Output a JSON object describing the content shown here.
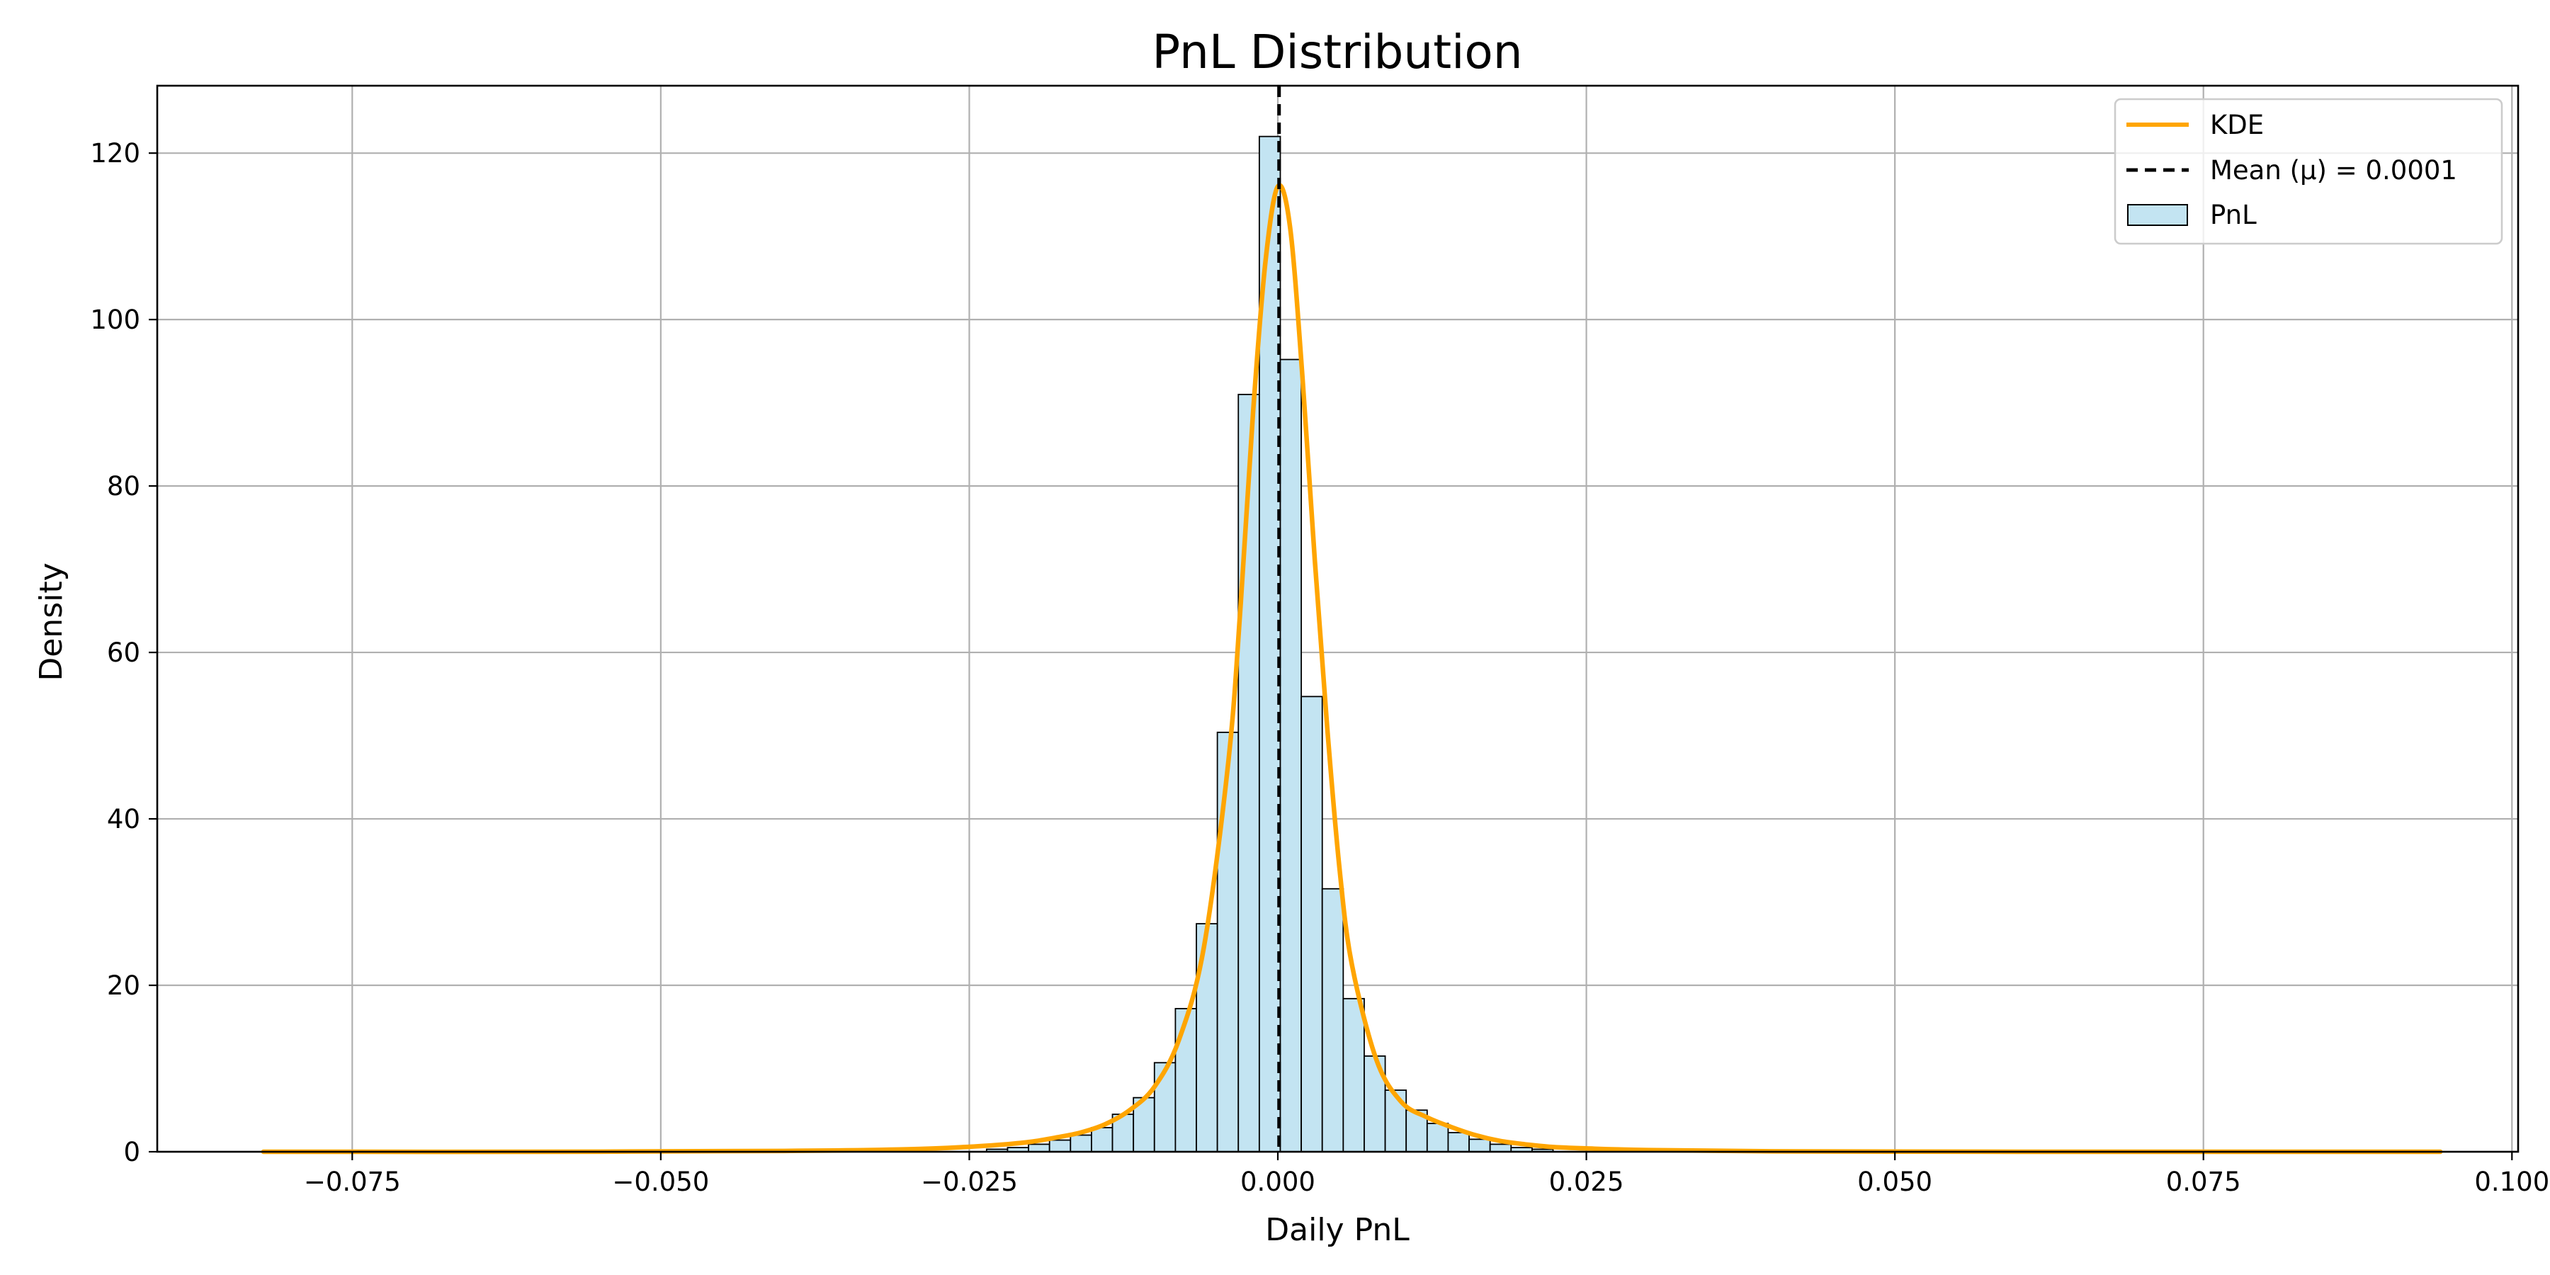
{
  "chart_data": {
    "type": "bar",
    "title": "PnL Distribution",
    "xlabel": "Daily PnL",
    "ylabel": "Density",
    "xlim": [
      -0.0908,
      0.1005
    ],
    "ylim": [
      0,
      128.1
    ],
    "grid": true,
    "legend_position": "top-right",
    "x_ticks": [
      {
        "value": -0.075,
        "label": "−0.075"
      },
      {
        "value": -0.05,
        "label": "−0.050"
      },
      {
        "value": -0.025,
        "label": "−0.025"
      },
      {
        "value": 0.0,
        "label": "0.000"
      },
      {
        "value": 0.025,
        "label": "0.025"
      },
      {
        "value": 0.05,
        "label": "0.050"
      },
      {
        "value": 0.075,
        "label": "0.075"
      },
      {
        "value": 0.1,
        "label": "0.100"
      }
    ],
    "y_ticks": [
      {
        "value": 0,
        "label": "0"
      },
      {
        "value": 20,
        "label": "20"
      },
      {
        "value": 40,
        "label": "40"
      },
      {
        "value": 60,
        "label": "60"
      },
      {
        "value": 80,
        "label": "80"
      },
      {
        "value": 100,
        "label": "100"
      },
      {
        "value": 120,
        "label": "120"
      }
    ],
    "histogram": {
      "name": "PnL",
      "fill": "#c3e4f2",
      "edge": "#000000",
      "bin_width": 0.0017,
      "bin_starts": [
        -0.0236,
        -0.0219,
        -0.0202,
        -0.0185,
        -0.0168,
        -0.0151,
        -0.0134,
        -0.0117,
        -0.01,
        -0.0083,
        -0.0066,
        -0.0049,
        -0.0032,
        -0.0015,
        0.0002,
        0.0019,
        0.0036,
        0.0053,
        0.007,
        0.0087,
        0.0104,
        0.0121,
        0.0138,
        0.0155,
        0.0172,
        0.0189,
        0.0206
      ],
      "values": [
        0.3,
        0.5,
        0.9,
        1.4,
        2.0,
        2.9,
        4.5,
        6.5,
        10.7,
        17.2,
        27.4,
        50.4,
        91.0,
        122.0,
        95.2,
        54.7,
        31.6,
        18.4,
        11.5,
        7.4,
        5.0,
        3.4,
        2.3,
        1.5,
        0.9,
        0.5,
        0.3
      ]
    },
    "kde": {
      "name": "KDE",
      "color": "#ffa500",
      "x": [
        -0.0822,
        -0.06,
        -0.04,
        -0.03,
        -0.025,
        -0.022,
        -0.02,
        -0.018,
        -0.016,
        -0.014,
        -0.012,
        -0.01,
        -0.008,
        -0.006,
        -0.004,
        -0.003,
        -0.002,
        -0.001,
        0.0,
        0.001,
        0.002,
        0.003,
        0.004,
        0.005,
        0.006,
        0.008,
        0.01,
        0.012,
        0.014,
        0.016,
        0.018,
        0.02,
        0.022,
        0.025,
        0.03,
        0.04,
        0.06,
        0.0942
      ],
      "y": [
        0.0,
        0.0,
        0.1,
        0.3,
        0.6,
        0.9,
        1.2,
        1.7,
        2.3,
        3.3,
        5.0,
        7.8,
        13.5,
        24.5,
        47.0,
        66.0,
        89.0,
        107.0,
        116.0,
        111.0,
        93.0,
        71.0,
        51.0,
        34.0,
        22.5,
        11.0,
        6.0,
        4.2,
        3.0,
        2.0,
        1.3,
        0.9,
        0.6,
        0.4,
        0.2,
        0.05,
        0.0,
        0.0
      ]
    },
    "mean_line": {
      "name": "Mean (μ) = 0.0001",
      "value": 0.0001,
      "color": "#000000",
      "style": "dashed"
    },
    "legend": [
      {
        "label": "KDE",
        "kind": "line"
      },
      {
        "label": "Mean (μ) = 0.0001",
        "kind": "dashed-line"
      },
      {
        "label": "PnL",
        "kind": "patch"
      }
    ]
  }
}
